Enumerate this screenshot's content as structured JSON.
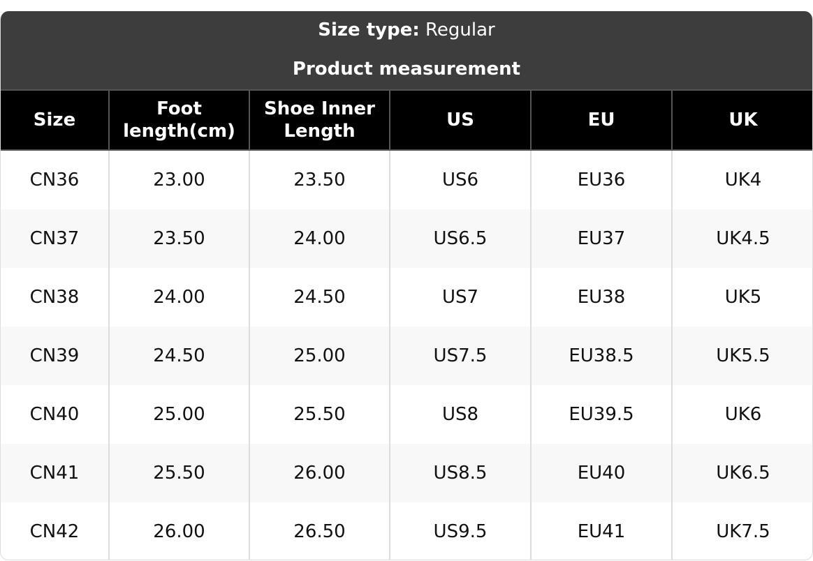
{
  "header": {
    "size_type_label": "Size type:",
    "size_type_value": "Regular",
    "subtitle": "Product measurement"
  },
  "table": {
    "columns": [
      "Size",
      "Foot length(cm)",
      "Shoe Inner Length",
      "US",
      "EU",
      "UK"
    ],
    "rows": [
      [
        "CN36",
        "23.00",
        "23.50",
        "US6",
        "EU36",
        "UK4"
      ],
      [
        "CN37",
        "23.50",
        "24.00",
        "US6.5",
        "EU37",
        "UK4.5"
      ],
      [
        "CN38",
        "24.00",
        "24.50",
        "US7",
        "EU38",
        "UK5"
      ],
      [
        "CN39",
        "24.50",
        "25.00",
        "US7.5",
        "EU38.5",
        "UK5.5"
      ],
      [
        "CN40",
        "25.00",
        "25.50",
        "US8",
        "EU39.5",
        "UK6"
      ],
      [
        "CN41",
        "25.50",
        "26.00",
        "US8.5",
        "EU40",
        "UK6.5"
      ],
      [
        "CN42",
        "26.00",
        "26.50",
        "US9.5",
        "EU41",
        "UK7.5"
      ]
    ]
  },
  "colors": {
    "title_bg": "#3d3d3d",
    "header_bg": "#000000",
    "alt_row": "#f8f8f8"
  }
}
